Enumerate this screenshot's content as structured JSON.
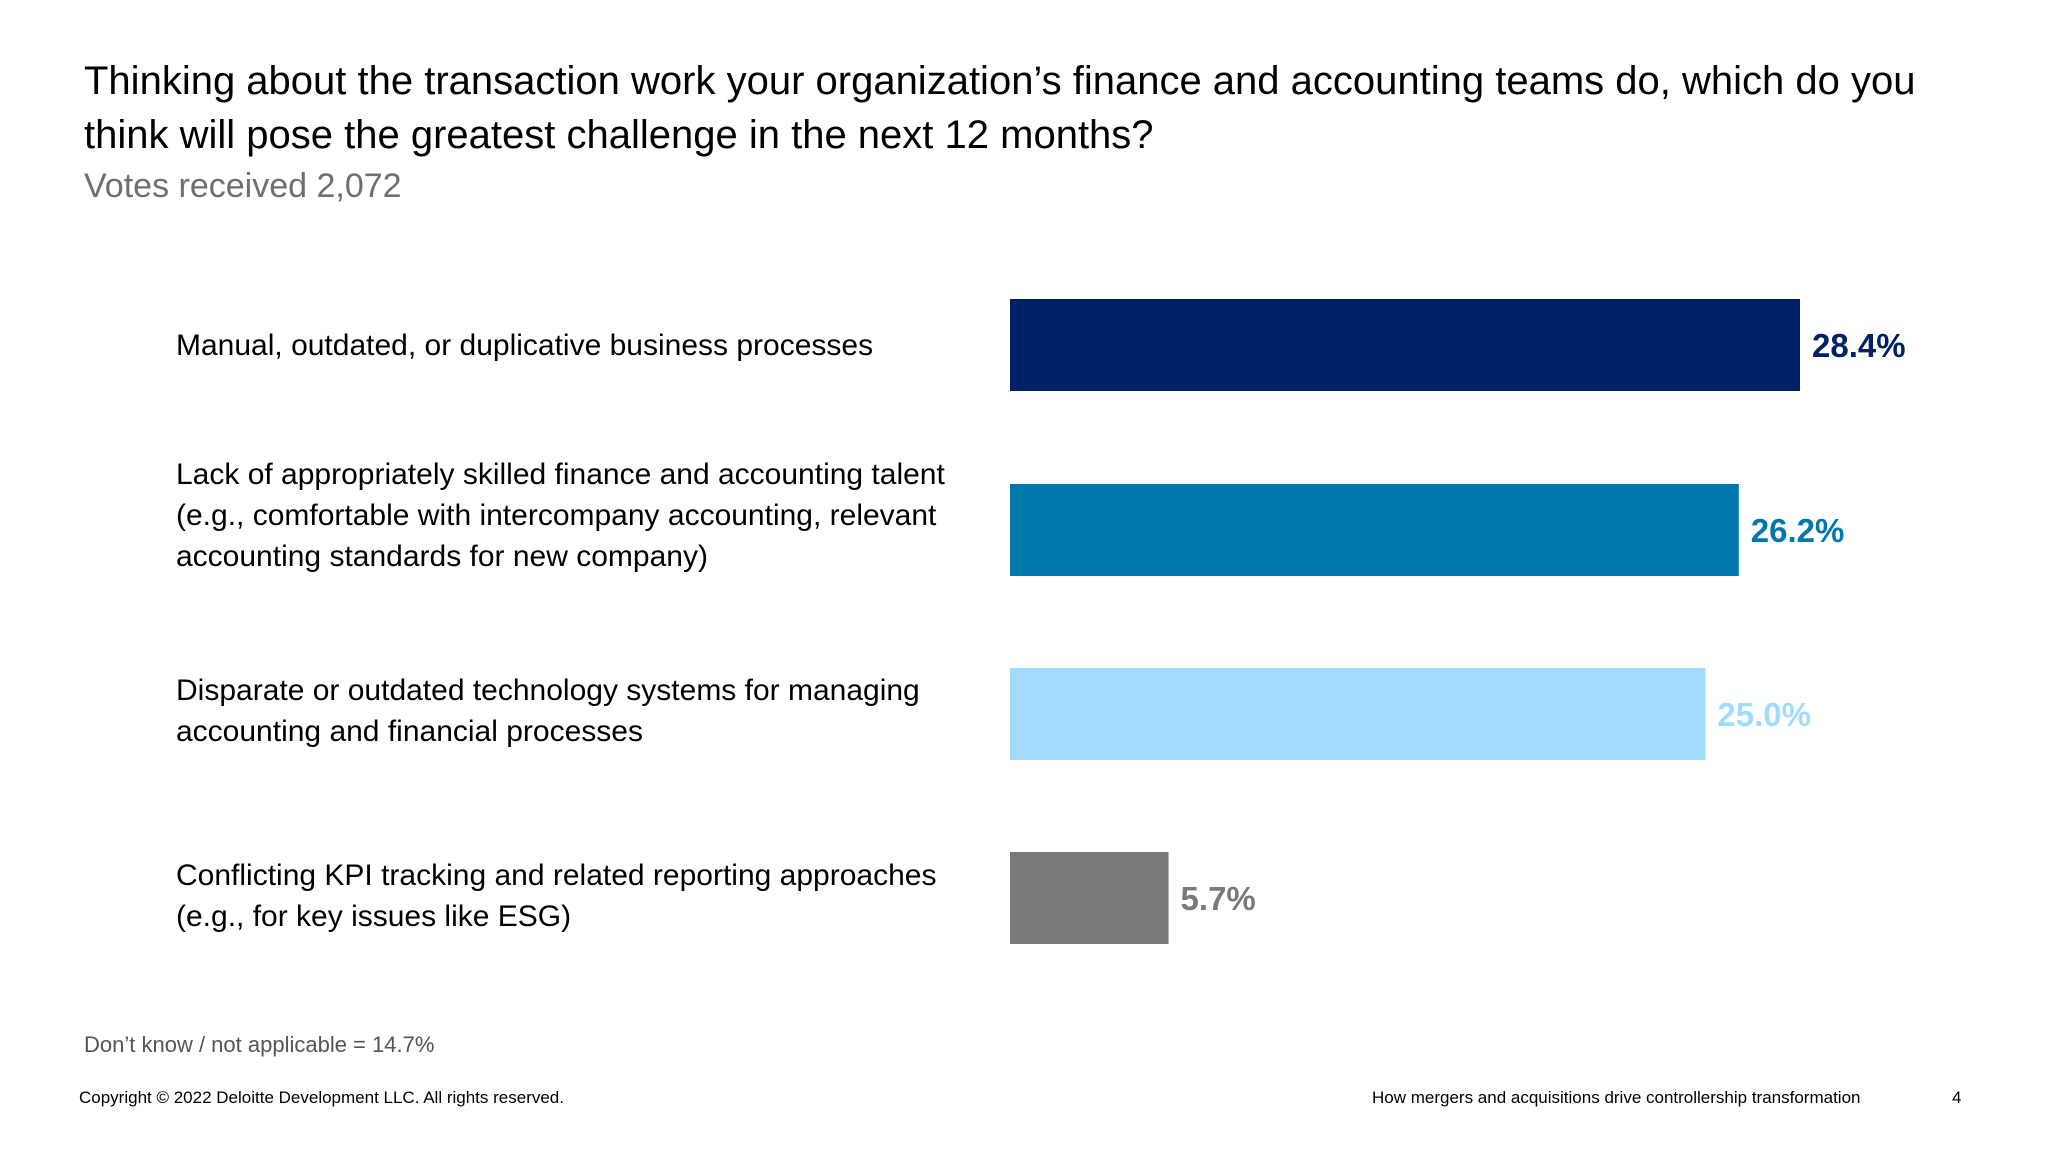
{
  "header": {
    "title": "Thinking about the transaction work your organization’s finance and accounting teams do, which do you think will pose the greatest challenge in the next 12 months?",
    "subtitle": "Votes received 2,072"
  },
  "chart_data": {
    "type": "bar",
    "orientation": "horizontal",
    "title": "Thinking about the transaction work your organization’s finance and accounting teams do, which do you think will pose the greatest challenge in the next 12 months?",
    "subtitle": "Votes received 2,072",
    "categories": [
      "Manual, outdated, or duplicative business processes",
      "Lack of appropriately skilled finance and accounting talent (e.g., comfortable with intercompany accounting, relevant accounting standards for new company)",
      "Disparate or outdated technology systems for managing accounting and financial processes",
      "Conflicting KPI tracking and related reporting approaches (e.g., for key issues like ESG)"
    ],
    "values": [
      28.4,
      26.2,
      25.0,
      5.7
    ],
    "value_labels": [
      "28.4%",
      "26.2%",
      "25.0%",
      "5.7%"
    ],
    "colors": [
      "#002068",
      "#0077ad",
      "#a1dbfd",
      "#7a7a7c"
    ],
    "xlim": [
      0,
      28.4
    ],
    "grid": false,
    "legend": "none",
    "note": "Don’t know / not applicable = 14.7%"
  },
  "footer": {
    "copyright": "Copyright © 2022 Deloitte Development LLC. All rights reserved.",
    "report_title": "How mergers and acquisitions drive controllership transformation",
    "page_number": "4"
  }
}
